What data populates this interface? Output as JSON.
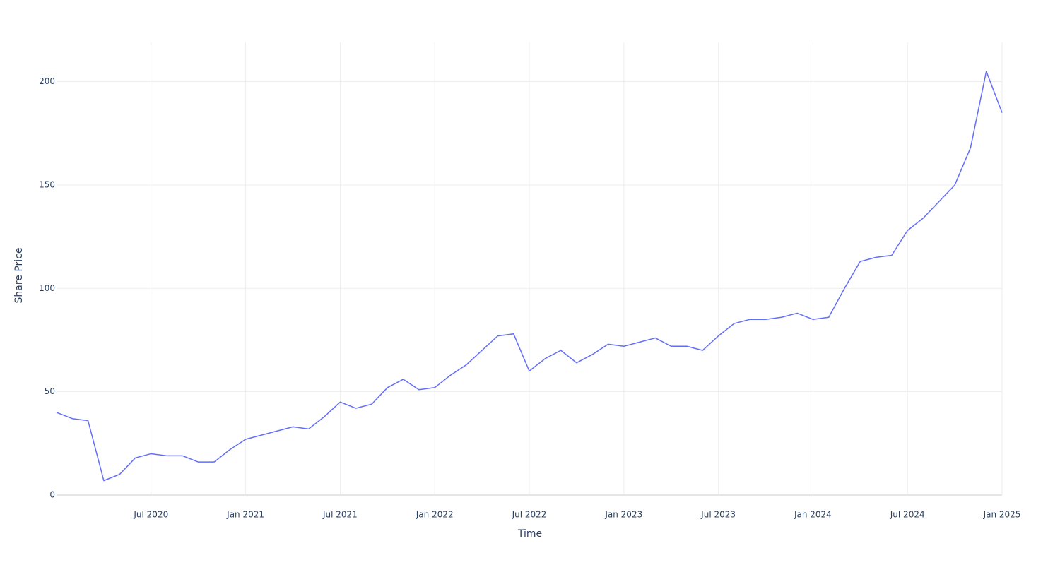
{
  "chart_data": {
    "type": "line",
    "x_label": "Time",
    "y_label": "Share Price",
    "x": [
      "2020-01",
      "2020-02",
      "2020-03",
      "2020-04",
      "2020-05",
      "2020-06",
      "2020-07",
      "2020-08",
      "2020-09",
      "2020-10",
      "2020-11",
      "2020-12",
      "2021-01",
      "2021-02",
      "2021-03",
      "2021-04",
      "2021-05",
      "2021-06",
      "2021-07",
      "2021-08",
      "2021-09",
      "2021-10",
      "2021-11",
      "2021-12",
      "2022-01",
      "2022-02",
      "2022-03",
      "2022-04",
      "2022-05",
      "2022-06",
      "2022-07",
      "2022-08",
      "2022-09",
      "2022-10",
      "2022-11",
      "2022-12",
      "2023-01",
      "2023-02",
      "2023-03",
      "2023-04",
      "2023-05",
      "2023-06",
      "2023-07",
      "2023-08",
      "2023-09",
      "2023-10",
      "2023-11",
      "2023-12",
      "2024-01",
      "2024-02",
      "2024-03",
      "2024-04",
      "2024-05",
      "2024-06",
      "2024-07",
      "2024-08",
      "2024-09",
      "2024-10",
      "2024-11",
      "2024-12",
      "2025-01"
    ],
    "series": [
      {
        "name": "Share Price",
        "color": "#636efa",
        "values": [
          40,
          37,
          36,
          7,
          10,
          18,
          20,
          19,
          19,
          16,
          16,
          22,
          27,
          29,
          31,
          33,
          32,
          38,
          45,
          42,
          44,
          52,
          56,
          51,
          52,
          58,
          63,
          70,
          77,
          78,
          60,
          66,
          70,
          64,
          68,
          73,
          72,
          74,
          76,
          72,
          72,
          70,
          77,
          83,
          85,
          85,
          86,
          88,
          85,
          86,
          100,
          113,
          115,
          116,
          128,
          134,
          142,
          150,
          168,
          205,
          185
        ]
      }
    ],
    "xlim": [
      "2020-01",
      "2025-01"
    ],
    "xticks": [
      {
        "value": "2020-07",
        "label": "Jul 2020"
      },
      {
        "value": "2021-01",
        "label": "Jan 2021"
      },
      {
        "value": "2021-07",
        "label": "Jul 2021"
      },
      {
        "value": "2022-01",
        "label": "Jan 2022"
      },
      {
        "value": "2022-07",
        "label": "Jul 2022"
      },
      {
        "value": "2023-01",
        "label": "Jan 2023"
      },
      {
        "value": "2023-07",
        "label": "Jul 2023"
      },
      {
        "value": "2024-01",
        "label": "Jan 2024"
      },
      {
        "value": "2024-07",
        "label": "Jul 2024"
      },
      {
        "value": "2025-01",
        "label": "Jan 2025"
      }
    ],
    "ylim": [
      0,
      219
    ],
    "yticks": [
      0,
      50,
      100,
      150,
      200
    ],
    "grid": true
  }
}
